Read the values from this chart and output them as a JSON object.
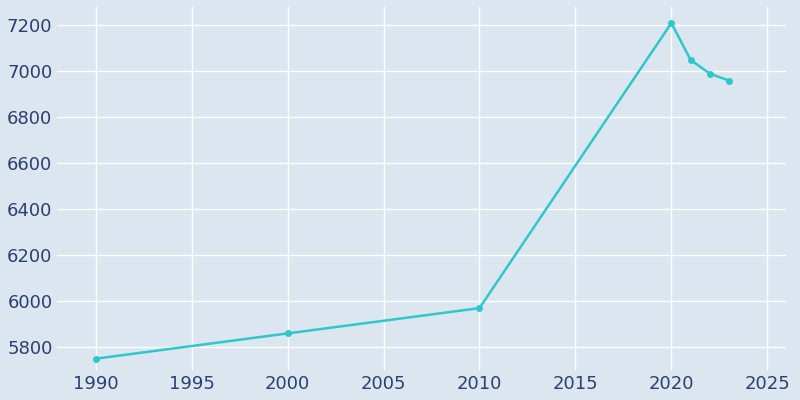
{
  "years": [
    1990,
    2000,
    2010,
    2020,
    2021,
    2022,
    2023
  ],
  "population": [
    5750,
    5860,
    5970,
    7210,
    7050,
    6990,
    6960
  ],
  "line_color": "#2ec8c8",
  "marker_color": "#2ec8c8",
  "bg_color": "#dce6f0",
  "plot_bg_color": "#dce6f0",
  "grid_color": "#ffffff",
  "tick_color": "#2d3f6e",
  "xlim": [
    1988,
    2026
  ],
  "ylim": [
    5700,
    7280
  ],
  "xticks": [
    1990,
    1995,
    2000,
    2005,
    2010,
    2015,
    2020,
    2025
  ],
  "yticks": [
    5800,
    6000,
    6200,
    6400,
    6600,
    6800,
    7000,
    7200
  ],
  "linewidth": 1.8,
  "markersize": 4,
  "tick_fontsize": 13
}
